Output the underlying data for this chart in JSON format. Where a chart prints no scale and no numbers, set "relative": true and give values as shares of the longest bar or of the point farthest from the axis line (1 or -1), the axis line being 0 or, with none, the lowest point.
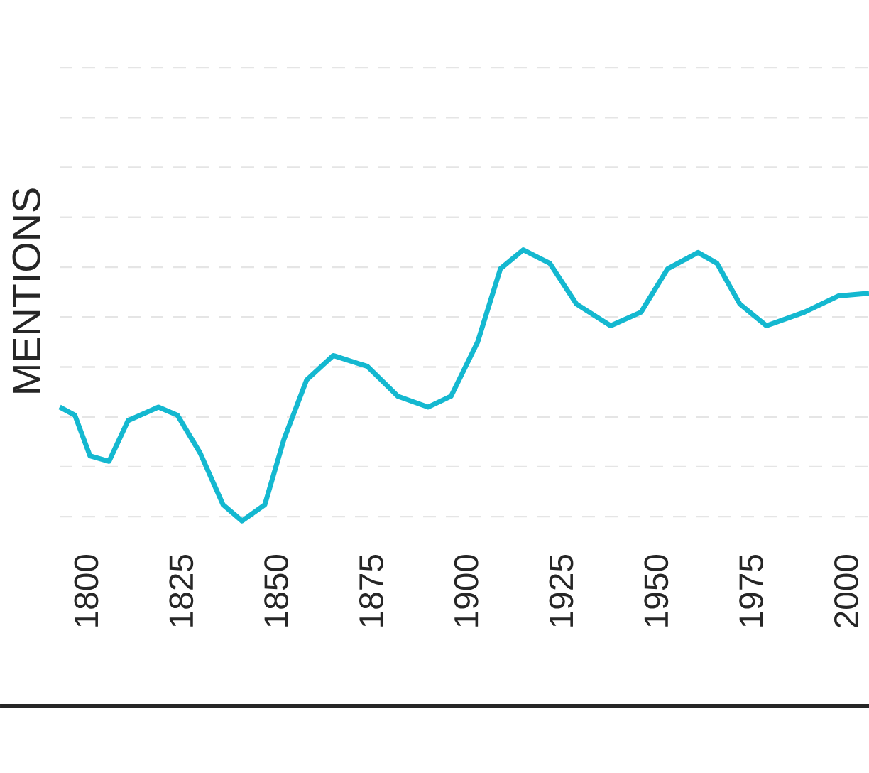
{
  "chart_data": {
    "type": "line",
    "ylabel": "MENTIONS",
    "relative": true,
    "grid": "y",
    "marker": "none",
    "line_style": "solid",
    "xlim": [
      1793,
      2006
    ],
    "xticks": [
      1800,
      1825,
      1850,
      1875,
      1900,
      1925,
      1950,
      1975,
      2000
    ],
    "x": [
      1793,
      1797,
      1801,
      1806,
      1811,
      1819,
      1824,
      1830,
      1836,
      1841,
      1847,
      1852,
      1858,
      1865,
      1874,
      1882,
      1890,
      1896,
      1903,
      1909,
      1915,
      1922,
      1929,
      1938,
      1946,
      1953,
      1961,
      1966,
      1972,
      1979,
      1989,
      1998,
      2006
    ],
    "series": [
      {
        "color": "#14b8d0",
        "values": [
          0.42,
          0.39,
          0.24,
          0.22,
          0.37,
          0.42,
          0.39,
          0.25,
          0.06,
          0,
          0.06,
          0.3,
          0.52,
          0.61,
          0.57,
          0.46,
          0.42,
          0.46,
          0.66,
          0.93,
          1,
          0.95,
          0.8,
          0.72,
          0.77,
          0.93,
          0.99,
          0.95,
          0.8,
          0.72,
          0.77,
          0.83,
          0.84
        ]
      }
    ]
  }
}
